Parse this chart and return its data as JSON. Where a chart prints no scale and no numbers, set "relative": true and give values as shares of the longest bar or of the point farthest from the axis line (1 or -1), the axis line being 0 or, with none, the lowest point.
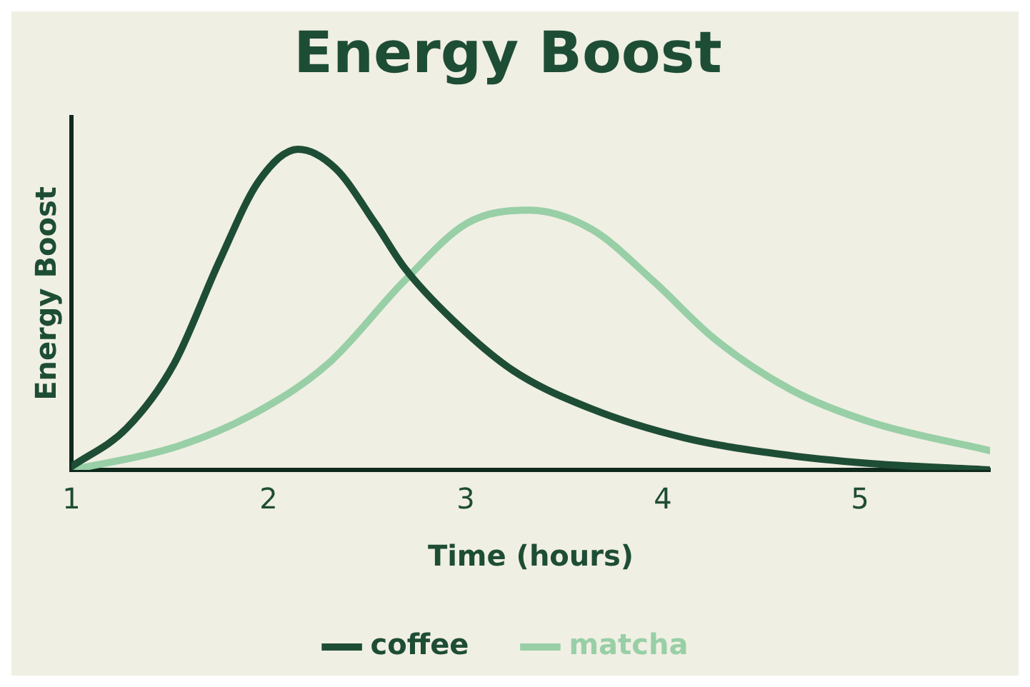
{
  "chart_data": {
    "type": "line",
    "title": "Energy Boost",
    "xlabel": "Time (hours)",
    "ylabel": "Energy Boost",
    "xlim": [
      1,
      5.66
    ],
    "xticks": [
      1,
      2,
      3,
      4,
      5
    ],
    "relative": true,
    "grid": false,
    "legend": "bottom",
    "marker": "none",
    "line_style": "solid",
    "series": [
      {
        "name": "coffee",
        "color": "#1e4d35",
        "x": [
          1.0,
          1.28,
          1.52,
          1.75,
          1.95,
          2.15,
          2.34,
          2.54,
          2.69,
          2.93,
          3.24,
          3.64,
          4.11,
          4.58,
          5.05,
          5.66
        ],
        "values": [
          0.01,
          0.13,
          0.33,
          0.65,
          0.9,
          1.0,
          0.94,
          0.77,
          0.63,
          0.47,
          0.31,
          0.19,
          0.1,
          0.05,
          0.02,
          0.0
        ]
      },
      {
        "name": "matcha",
        "color": "#98cfa6",
        "x": [
          1.0,
          1.52,
          1.91,
          2.3,
          2.69,
          3.01,
          3.32,
          3.64,
          3.95,
          4.26,
          4.65,
          5.05,
          5.66
        ],
        "values": [
          0.0,
          0.07,
          0.17,
          0.33,
          0.59,
          0.77,
          0.81,
          0.75,
          0.59,
          0.41,
          0.25,
          0.15,
          0.06
        ]
      }
    ]
  }
}
